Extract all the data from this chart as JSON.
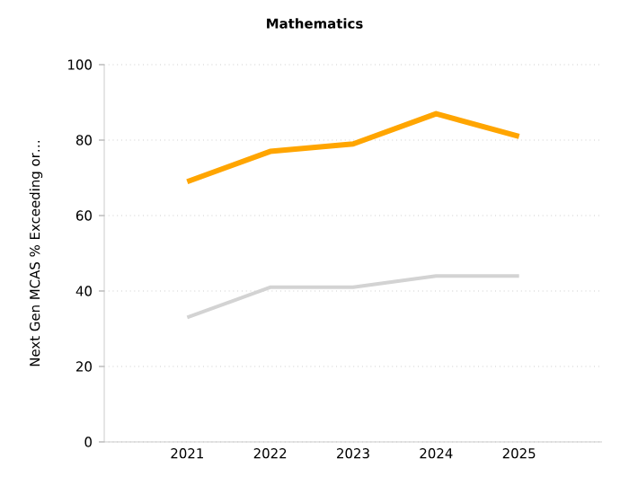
{
  "chart_data": {
    "type": "line",
    "title": "Mathematics",
    "ylabel": "Next Gen MCAS % Exceeding or…",
    "categories": [
      "2021",
      "2022",
      "2023",
      "2024",
      "2025"
    ],
    "series": [
      {
        "color": "#ffa500",
        "values": [
          69,
          77,
          79,
          87,
          81
        ]
      },
      {
        "color": "#d3d3d3",
        "values": [
          33,
          41,
          41,
          44,
          44
        ]
      }
    ],
    "ylim": [
      0,
      100
    ],
    "yticks": [
      0,
      20,
      40,
      60,
      80,
      100
    ],
    "grid": "y",
    "marker": "none",
    "line_style": "solid"
  }
}
